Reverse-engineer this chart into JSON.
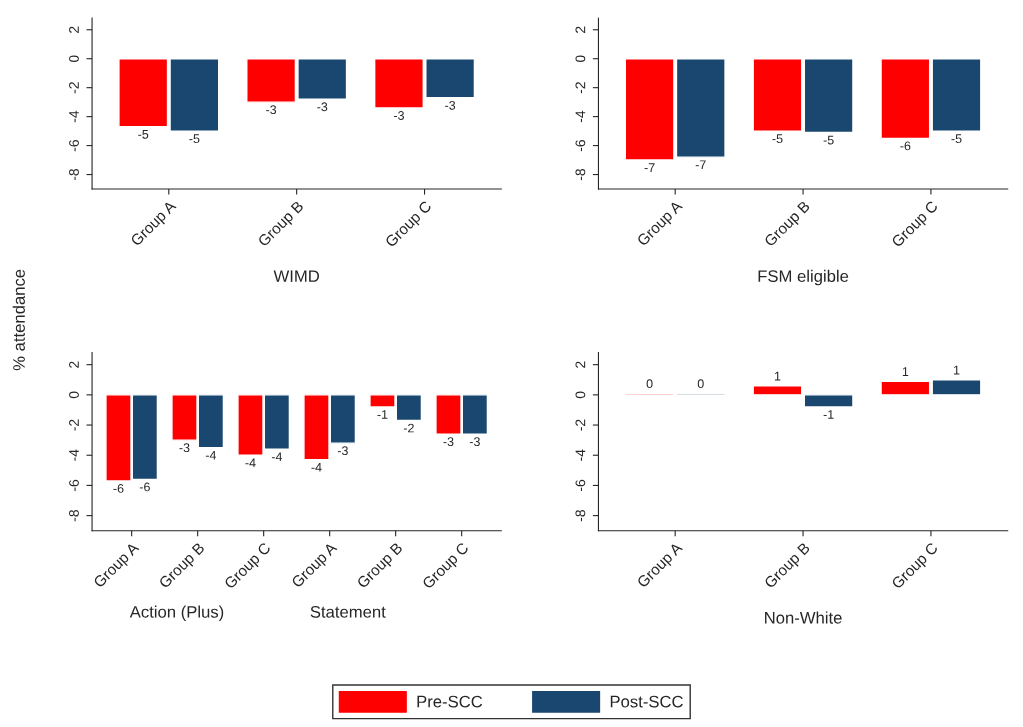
{
  "chart_data": [
    {
      "type": "bar",
      "xlabel": "WIMD",
      "ylabel": "% attendance",
      "categories": [
        "Group A",
        "Group B",
        "Group C"
      ],
      "ylim": [
        -9,
        2.8
      ],
      "yticks": [
        2,
        0,
        -2,
        -4,
        -6,
        -8
      ],
      "legend": "bottom",
      "grid": false,
      "series": [
        {
          "name": "Pre-SCC",
          "color": "#ff0000",
          "values": [
            -4.7,
            -3.0,
            -3.4
          ],
          "value_labels": [
            "-5",
            "-3",
            "-3"
          ]
        },
        {
          "name": "Post-SCC",
          "color": "#1a476f",
          "values": [
            -5.0,
            -2.8,
            -2.7
          ],
          "value_labels": [
            "-5",
            "-3",
            "-3"
          ]
        }
      ]
    },
    {
      "type": "bar",
      "xlabel": "FSM eligible",
      "categories": [
        "Group A",
        "Group B",
        "Group C"
      ],
      "ylim": [
        -9,
        2.8
      ],
      "yticks": [
        2,
        0,
        -2,
        -4,
        -6,
        -8
      ],
      "grid": false,
      "series": [
        {
          "color": "#ff0000",
          "values": [
            -7.0,
            -5.0,
            -5.5
          ],
          "value_labels": [
            "-7",
            "-5",
            "-6"
          ]
        },
        {
          "color": "#1a476f",
          "values": [
            -6.8,
            -5.1,
            -5.0
          ],
          "value_labels": [
            "-7",
            "-5",
            "-5"
          ]
        }
      ]
    },
    {
      "type": "bar",
      "annotations": [
        "Action (Plus)",
        "Statement"
      ],
      "categories": [
        "Group A",
        "Group B",
        "Group C",
        "Group A",
        "Group B",
        "Group C"
      ],
      "ylim": [
        -9,
        2.8
      ],
      "yticks": [
        2,
        0,
        -2,
        -4,
        -6,
        -8
      ],
      "grid": false,
      "series": [
        {
          "color": "#ff0000",
          "values": [
            -5.7,
            -3.0,
            -4.0,
            -4.3,
            -0.8,
            -2.6
          ],
          "value_labels": [
            "-6",
            "-3",
            "-4",
            "-4",
            "-1",
            "-3"
          ]
        },
        {
          "color": "#1a476f",
          "values": [
            -5.6,
            -3.5,
            -3.6,
            -3.2,
            -1.7,
            -2.6
          ],
          "value_labels": [
            "-6",
            "-4",
            "-4",
            "-3",
            "-2",
            "-3"
          ]
        }
      ]
    },
    {
      "type": "bar",
      "xlabel": "Non-White",
      "categories": [
        "Group A",
        "Group B",
        "Group C"
      ],
      "ylim": [
        -9,
        2.8
      ],
      "yticks": [
        2,
        0,
        -2,
        -4,
        -6,
        -8
      ],
      "grid": false,
      "series": [
        {
          "color": "#ff0000",
          "values": [
            0.1,
            0.6,
            0.9
          ],
          "value_labels": [
            "0",
            "1",
            "1"
          ]
        },
        {
          "color": "#1a476f",
          "values": [
            0.1,
            -0.8,
            1.0
          ],
          "value_labels": [
            "0",
            "-1",
            "1"
          ]
        }
      ]
    }
  ]
}
